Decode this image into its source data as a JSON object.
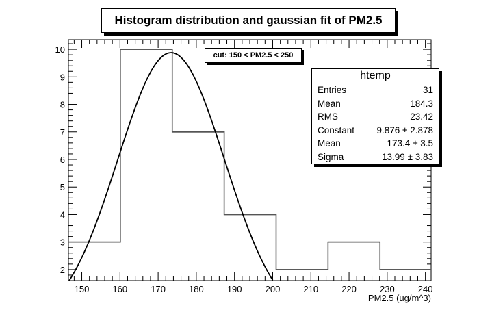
{
  "chart_data": {
    "type": "histogram",
    "title": "Histogram distribution and gaussian fit of PM2.5",
    "xlabel": "PM2.5 (ug/m^3)",
    "ylabel": "",
    "xlim": [
      146.5,
      241.5
    ],
    "ylim": [
      1.6,
      10.35
    ],
    "x_ticks": [
      150,
      160,
      170,
      180,
      190,
      200,
      210,
      220,
      230,
      240
    ],
    "y_ticks": [
      2,
      3,
      4,
      5,
      6,
      7,
      8,
      9,
      10
    ],
    "bins": [
      {
        "x0": 146.5,
        "x1": 160.1,
        "count": 3
      },
      {
        "x0": 160.1,
        "x1": 173.7,
        "count": 10
      },
      {
        "x0": 173.7,
        "x1": 187.3,
        "count": 7
      },
      {
        "x0": 187.3,
        "x1": 200.9,
        "count": 4
      },
      {
        "x0": 200.9,
        "x1": 214.5,
        "count": 2
      },
      {
        "x0": 214.5,
        "x1": 228.1,
        "count": 3
      },
      {
        "x0": 228.1,
        "x1": 241.5,
        "count": 2
      }
    ],
    "fit": {
      "constant": 9.876,
      "mean": 173.4,
      "sigma": 13.99
    },
    "cut_label": "cut: 150 < PM2.5 < 250",
    "stats_box": {
      "title": "htemp",
      "rows": [
        {
          "label": "Entries",
          "value": "31"
        },
        {
          "label": "Mean",
          "value": "184.3"
        },
        {
          "label": "RMS",
          "value": "23.42"
        },
        {
          "label": "Constant",
          "value": "9.876 ± 2.878"
        },
        {
          "label": "Mean",
          "value": "173.4 ± 3.5"
        },
        {
          "label": "Sigma",
          "value": "13.99 ± 3.83"
        }
      ]
    },
    "colors": {
      "histogram": "#555555",
      "fit": "#000000",
      "frame": "#000000"
    }
  }
}
